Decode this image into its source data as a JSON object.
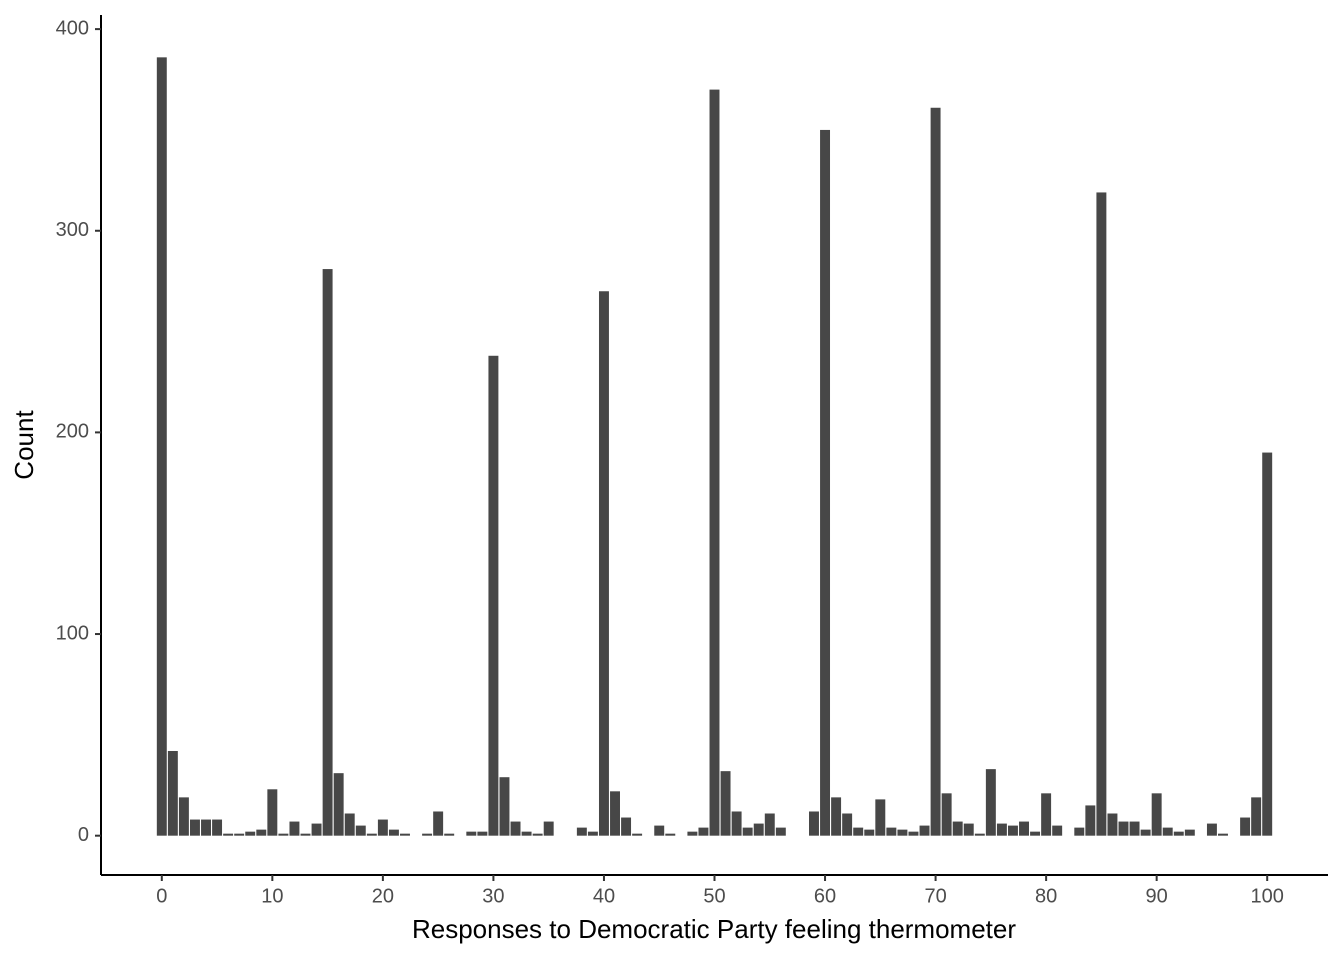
{
  "chart_data": {
    "type": "bar",
    "x_label": "Responses to Democratic Party feeling thermometer",
    "y_label": "Count",
    "x": [
      0,
      1,
      2,
      3,
      4,
      5,
      6,
      7,
      8,
      9,
      10,
      11,
      12,
      13,
      14,
      15,
      16,
      17,
      18,
      19,
      20,
      21,
      22,
      23,
      24,
      25,
      26,
      27,
      28,
      29,
      30,
      31,
      32,
      33,
      34,
      35,
      36,
      37,
      38,
      39,
      40,
      41,
      42,
      43,
      44,
      45,
      46,
      47,
      48,
      49,
      50,
      51,
      52,
      53,
      54,
      55,
      56,
      57,
      58,
      59,
      60,
      61,
      62,
      63,
      64,
      65,
      66,
      67,
      68,
      69,
      70,
      71,
      72,
      73,
      74,
      75,
      76,
      77,
      78,
      79,
      80,
      81,
      82,
      83,
      84,
      85,
      86,
      87,
      88,
      89,
      90,
      91,
      92,
      93,
      94,
      95,
      96,
      97,
      98,
      99,
      100
    ],
    "values": [
      386,
      42,
      19,
      8,
      8,
      8,
      1,
      1,
      2,
      3,
      23,
      1,
      7,
      1,
      6,
      281,
      31,
      11,
      5,
      1,
      8,
      3,
      1,
      0,
      1,
      12,
      1,
      0,
      2,
      2,
      238,
      29,
      7,
      2,
      1,
      7,
      0,
      0,
      4,
      2,
      270,
      22,
      9,
      1,
      0,
      5,
      1,
      0,
      2,
      4,
      370,
      32,
      12,
      4,
      6,
      11,
      4,
      0,
      0,
      12,
      350,
      19,
      11,
      4,
      3,
      18,
      4,
      3,
      2,
      5,
      361,
      21,
      7,
      6,
      1,
      33,
      6,
      5,
      7,
      2,
      21,
      5,
      0,
      4,
      15,
      319,
      11,
      7,
      7,
      3,
      21,
      4,
      2,
      3,
      0,
      6,
      1,
      0,
      9,
      19,
      190
    ],
    "color": "#474747",
    "xlim": [
      -5.5,
      105.5
    ],
    "ylim": [
      -19.5,
      407
    ],
    "xticks": [
      0,
      10,
      20,
      30,
      40,
      50,
      60,
      70,
      80,
      90,
      100
    ],
    "yticks": [
      0,
      100,
      200,
      300,
      400
    ]
  }
}
